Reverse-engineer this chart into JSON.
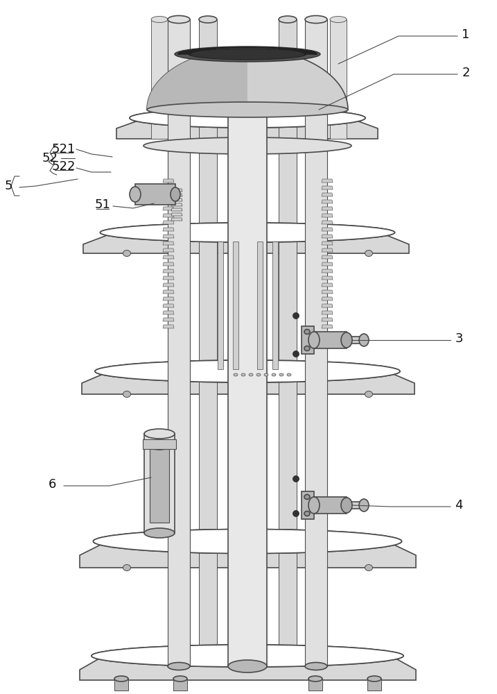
{
  "bg_color": "#ffffff",
  "line_color": "#4a4a4a",
  "light_fill": "#d8d8d8",
  "mid_fill": "#b8b8b8",
  "dark_fill": "#888888",
  "figsize": [
    7.17,
    10.0
  ],
  "dpi": 100
}
